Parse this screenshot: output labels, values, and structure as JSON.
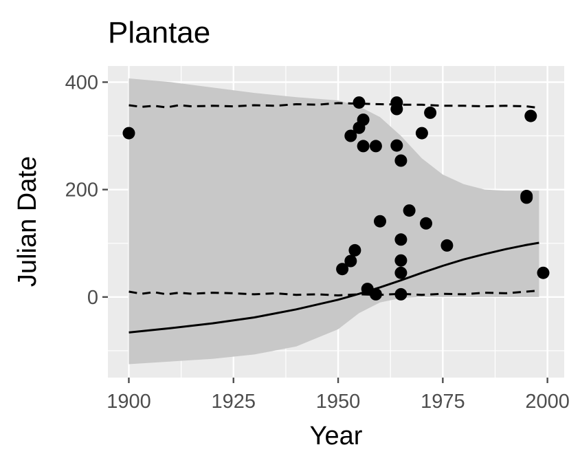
{
  "chart_data": {
    "type": "scatter",
    "title": "Plantae",
    "xlabel": "Year",
    "ylabel": "Julian Date",
    "xlim": [
      1895,
      2004
    ],
    "ylim": [
      -150,
      430
    ],
    "x_ticks": [
      1900,
      1925,
      1950,
      1975,
      2000
    ],
    "x_tick_labels": [
      "1900",
      "1925",
      "1950",
      "1975",
      "2000"
    ],
    "y_ticks": [
      0,
      200,
      400
    ],
    "y_tick_labels": [
      "0",
      "200",
      "400"
    ],
    "grid": true,
    "legend": "none",
    "colors": {
      "panel": "#EBEBEB",
      "grid": "#FFFFFF",
      "ribbon": "#C8C8C8",
      "points": "#000000",
      "lines": "#000000",
      "ticks": "#4D4D4D"
    },
    "points": [
      {
        "x": 1900,
        "y": 305
      },
      {
        "x": 1951,
        "y": 52
      },
      {
        "x": 1953,
        "y": 67
      },
      {
        "x": 1953,
        "y": 300
      },
      {
        "x": 1954,
        "y": 87
      },
      {
        "x": 1955,
        "y": 315
      },
      {
        "x": 1955,
        "y": 362
      },
      {
        "x": 1956,
        "y": 330
      },
      {
        "x": 1956,
        "y": 281
      },
      {
        "x": 1957,
        "y": 15
      },
      {
        "x": 1959,
        "y": 5
      },
      {
        "x": 1959,
        "y": 281
      },
      {
        "x": 1960,
        "y": 141
      },
      {
        "x": 1964,
        "y": 362
      },
      {
        "x": 1964,
        "y": 350
      },
      {
        "x": 1964,
        "y": 282
      },
      {
        "x": 1965,
        "y": 254
      },
      {
        "x": 1965,
        "y": 107
      },
      {
        "x": 1965,
        "y": 68
      },
      {
        "x": 1965,
        "y": 45
      },
      {
        "x": 1965,
        "y": 5
      },
      {
        "x": 1967,
        "y": 161
      },
      {
        "x": 1970,
        "y": 305
      },
      {
        "x": 1971,
        "y": 137
      },
      {
        "x": 1972,
        "y": 343
      },
      {
        "x": 1976,
        "y": 96
      },
      {
        "x": 1995,
        "y": 188
      },
      {
        "x": 1995,
        "y": 185
      },
      {
        "x": 1996,
        "y": 337
      },
      {
        "x": 1999,
        "y": 45
      }
    ],
    "fit_line": {
      "x": [
        1900,
        1910,
        1920,
        1930,
        1940,
        1950,
        1955,
        1960,
        1965,
        1970,
        1975,
        1980,
        1985,
        1990,
        1995,
        1998
      ],
      "y": [
        -66,
        -58,
        -49,
        -38,
        -23,
        -5,
        6,
        18,
        31,
        45,
        58,
        70,
        80,
        89,
        97,
        101
      ]
    },
    "ribbon": {
      "x": [
        1900,
        1910,
        1920,
        1930,
        1940,
        1950,
        1955,
        1960,
        1965,
        1970,
        1975,
        1980,
        1985,
        1990,
        1995,
        1998
      ],
      "upper": [
        407,
        400,
        390,
        380,
        372,
        366,
        355,
        335,
        300,
        258,
        228,
        210,
        200,
        198,
        198,
        198
      ],
      "lower": [
        -125,
        -120,
        -115,
        -107,
        -92,
        -60,
        -30,
        -10,
        -2,
        0,
        0,
        0,
        0,
        0,
        0,
        0
      ]
    },
    "upper_dashed": {
      "x": [
        1900,
        1903,
        1906,
        1909,
        1912,
        1915,
        1920,
        1925,
        1930,
        1935,
        1940,
        1945,
        1950,
        1955,
        1960,
        1965,
        1970,
        1975,
        1980,
        1985,
        1990,
        1995,
        1998
      ],
      "y": [
        357,
        354,
        356,
        353,
        357,
        355,
        356,
        355,
        357,
        356,
        359,
        358,
        361,
        360,
        359,
        358,
        358,
        356,
        356,
        355,
        356,
        355,
        352
      ]
    },
    "lower_dashed": {
      "x": [
        1900,
        1903,
        1906,
        1909,
        1912,
        1915,
        1920,
        1925,
        1930,
        1935,
        1940,
        1945,
        1950,
        1955,
        1960,
        1965,
        1970,
        1975,
        1980,
        1985,
        1990,
        1995,
        1998
      ],
      "y": [
        10,
        6,
        9,
        5,
        8,
        6,
        8,
        7,
        5,
        7,
        4,
        5,
        3,
        5,
        4,
        6,
        4,
        6,
        5,
        8,
        7,
        10,
        12
      ]
    }
  }
}
